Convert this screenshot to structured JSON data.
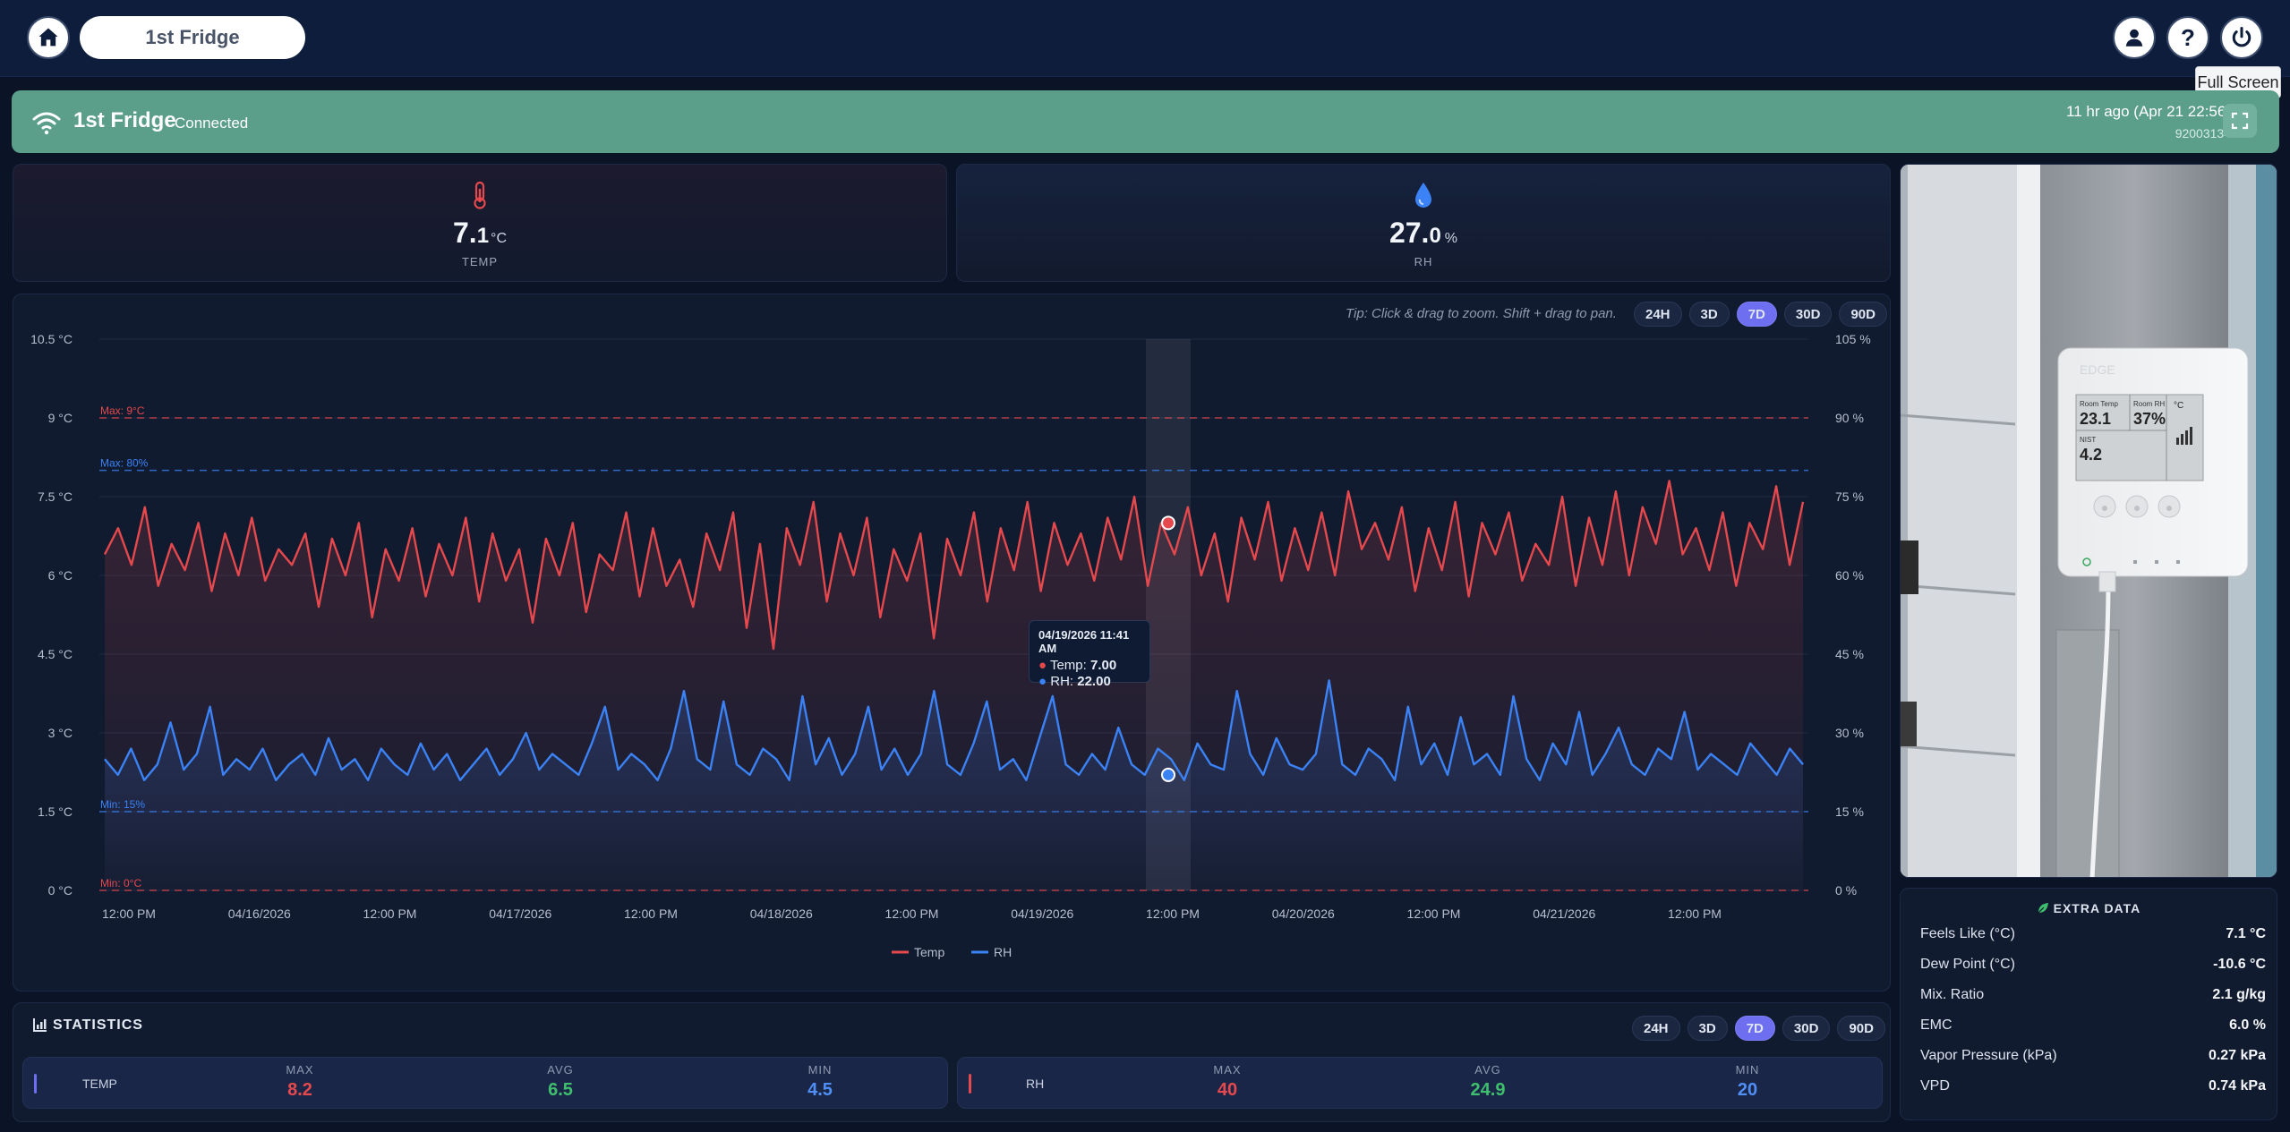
{
  "header": {
    "title": "1st Fridge",
    "tooltip": "Full Screen"
  },
  "device": {
    "name": "1st Fridge",
    "status": "Connected",
    "last_seen": "11 hr ago (Apr 21 22:56)",
    "serial": "92003134"
  },
  "metrics": {
    "temp": {
      "value_int": "7.",
      "value_dec": "1",
      "unit": "°C",
      "label": "TEMP"
    },
    "rh": {
      "value_int": "27.",
      "value_dec": "0",
      "unit": "%",
      "label": "RH"
    }
  },
  "chart": {
    "tip": "Tip: Click & drag to zoom. Shift + drag to pan.",
    "ranges": [
      "24H",
      "3D",
      "7D",
      "30D",
      "90D"
    ],
    "active_range": "7D",
    "tooltip_date": "04/19/2026 11:41 AM",
    "tooltip_temp_label": "Temp:",
    "tooltip_temp_val": "7.00",
    "tooltip_rh_label": "RH:",
    "tooltip_rh_val": "22.00",
    "colors": {
      "temp": "#e5484d",
      "rh": "#3b82f6"
    }
  },
  "chart_data": {
    "type": "line",
    "title": "",
    "xlabel": "",
    "ylabel": "",
    "y_left_ticks": [
      "10.5 °C",
      "9 °C",
      "7.5 °C",
      "6 °C",
      "4.5 °C",
      "3 °C",
      "1.5 °C",
      "0 °C"
    ],
    "y_right_ticks": [
      "105 %",
      "90 %",
      "75 %",
      "60 %",
      "45 %",
      "30 %",
      "15 %",
      "0 %"
    ],
    "ylim_left": [
      0,
      10.5
    ],
    "ylim_right": [
      0,
      105
    ],
    "x_ticks": [
      "12:00 PM",
      "04/16/2026",
      "12:00 PM",
      "04/17/2026",
      "12:00 PM",
      "04/18/2026",
      "12:00 PM",
      "04/19/2026",
      "12:00 PM",
      "04/20/2026",
      "12:00 PM",
      "04/21/2026",
      "12:00 PM"
    ],
    "thresholds": [
      {
        "label": "Max: 9°C",
        "value": 9,
        "axis": "left",
        "color": "#e5484d"
      },
      {
        "label": "Max: 80%",
        "value": 80,
        "axis": "right",
        "color": "#3b82f6"
      },
      {
        "label": "Min: 15%",
        "value": 15,
        "axis": "right",
        "color": "#3b82f6"
      },
      {
        "label": "Min: 0°C",
        "value": 0,
        "axis": "left",
        "color": "#e5484d"
      }
    ],
    "legend": [
      "Temp",
      "RH"
    ],
    "legend_position": "bottom-center",
    "series": [
      {
        "name": "Temp",
        "axis": "left",
        "values": [
          6.4,
          6.9,
          6.2,
          7.3,
          5.8,
          6.6,
          6.1,
          7.0,
          5.7,
          6.8,
          6.0,
          7.1,
          5.9,
          6.5,
          6.2,
          6.8,
          5.4,
          6.7,
          6.0,
          7.0,
          5.2,
          6.5,
          5.9,
          6.9,
          5.6,
          6.6,
          6.0,
          7.1,
          5.5,
          6.8,
          5.9,
          6.5,
          5.1,
          6.7,
          6.0,
          7.0,
          5.3,
          6.4,
          6.1,
          7.2,
          5.6,
          6.9,
          5.8,
          6.3,
          5.4,
          6.8,
          6.1,
          7.2,
          5.0,
          6.6,
          4.6,
          6.9,
          6.2,
          7.4,
          5.5,
          6.8,
          6.0,
          7.1,
          5.2,
          6.5,
          5.9,
          6.8,
          4.8,
          6.7,
          6.0,
          7.2,
          5.5,
          6.9,
          6.1,
          7.4,
          5.7,
          7.0,
          6.2,
          6.8,
          5.9,
          7.1,
          6.3,
          7.5,
          5.8,
          7.0,
          6.4,
          7.3,
          6.0,
          6.8,
          5.5,
          7.1,
          6.3,
          7.4,
          5.9,
          6.9,
          6.1,
          7.2,
          6.0,
          7.6,
          6.5,
          7.0,
          6.3,
          7.3,
          5.7,
          6.9,
          6.1,
          7.4,
          5.6,
          7.0,
          6.4,
          7.2,
          5.9,
          6.6,
          6.2,
          7.5,
          5.8,
          7.1,
          6.2,
          7.6,
          6.0,
          7.3,
          6.6,
          7.8,
          6.4,
          6.9,
          6.1,
          7.2,
          5.8,
          7.0,
          6.5,
          7.7,
          6.2,
          7.4
        ]
      },
      {
        "name": "RH",
        "axis": "right",
        "values": [
          25,
          22,
          27,
          21,
          24,
          32,
          23,
          26,
          35,
          22,
          25,
          23,
          27,
          21,
          24,
          26,
          22,
          29,
          23,
          25,
          21,
          27,
          24,
          22,
          28,
          23,
          26,
          21,
          24,
          27,
          22,
          25,
          30,
          23,
          26,
          24,
          22,
          28,
          35,
          23,
          26,
          24,
          21,
          27,
          38,
          25,
          23,
          36,
          24,
          22,
          27,
          25,
          21,
          37,
          24,
          29,
          22,
          26,
          35,
          23,
          27,
          22,
          26,
          38,
          24,
          22,
          28,
          36,
          23,
          25,
          21,
          29,
          37,
          24,
          22,
          26,
          23,
          31,
          24,
          22,
          27,
          25,
          21,
          28,
          24,
          23,
          38,
          26,
          22,
          29,
          24,
          23,
          26,
          40,
          24,
          22,
          27,
          25,
          21,
          35,
          24,
          28,
          22,
          33,
          24,
          26,
          22,
          37,
          25,
          21,
          28,
          24,
          34,
          22,
          26,
          31,
          24,
          22,
          27,
          25,
          34,
          23,
          26,
          24,
          22,
          28,
          25,
          22,
          27,
          24
        ]
      }
    ]
  },
  "statistics": {
    "title": "STATISTICS",
    "ranges": [
      "24H",
      "3D",
      "7D",
      "30D",
      "90D"
    ],
    "active_range": "7D",
    "temp": {
      "label": "TEMP",
      "max_label": "MAX",
      "max": "8.2",
      "avg_label": "AVG",
      "avg": "6.5",
      "min_label": "MIN",
      "min": "4.5"
    },
    "rh": {
      "label": "RH",
      "max_label": "MAX",
      "max": "40",
      "avg_label": "AVG",
      "avg": "24.9",
      "min_label": "MIN",
      "min": "20"
    }
  },
  "photo": {
    "display_room_temp_label": "Room Temp",
    "display_room_temp": "23.1",
    "display_room_rh_label": "Room RH",
    "display_room_rh": "37%",
    "display_unit": "°C",
    "display_nist_label": "NIST",
    "display_nist": "4.2",
    "brand": "EDGE"
  },
  "extra": {
    "title": "EXTRA DATA",
    "rows": [
      {
        "label": "Feels Like (°C)",
        "value": "7.1 °C"
      },
      {
        "label": "Dew Point (°C)",
        "value": "-10.6 °C"
      },
      {
        "label": "Mix. Ratio",
        "value": "2.1 g/kg"
      },
      {
        "label": "EMC",
        "value": "6.0 %"
      },
      {
        "label": "Vapor Pressure (kPa)",
        "value": "0.27 kPa"
      },
      {
        "label": "VPD",
        "value": "0.74 kPa"
      }
    ]
  }
}
